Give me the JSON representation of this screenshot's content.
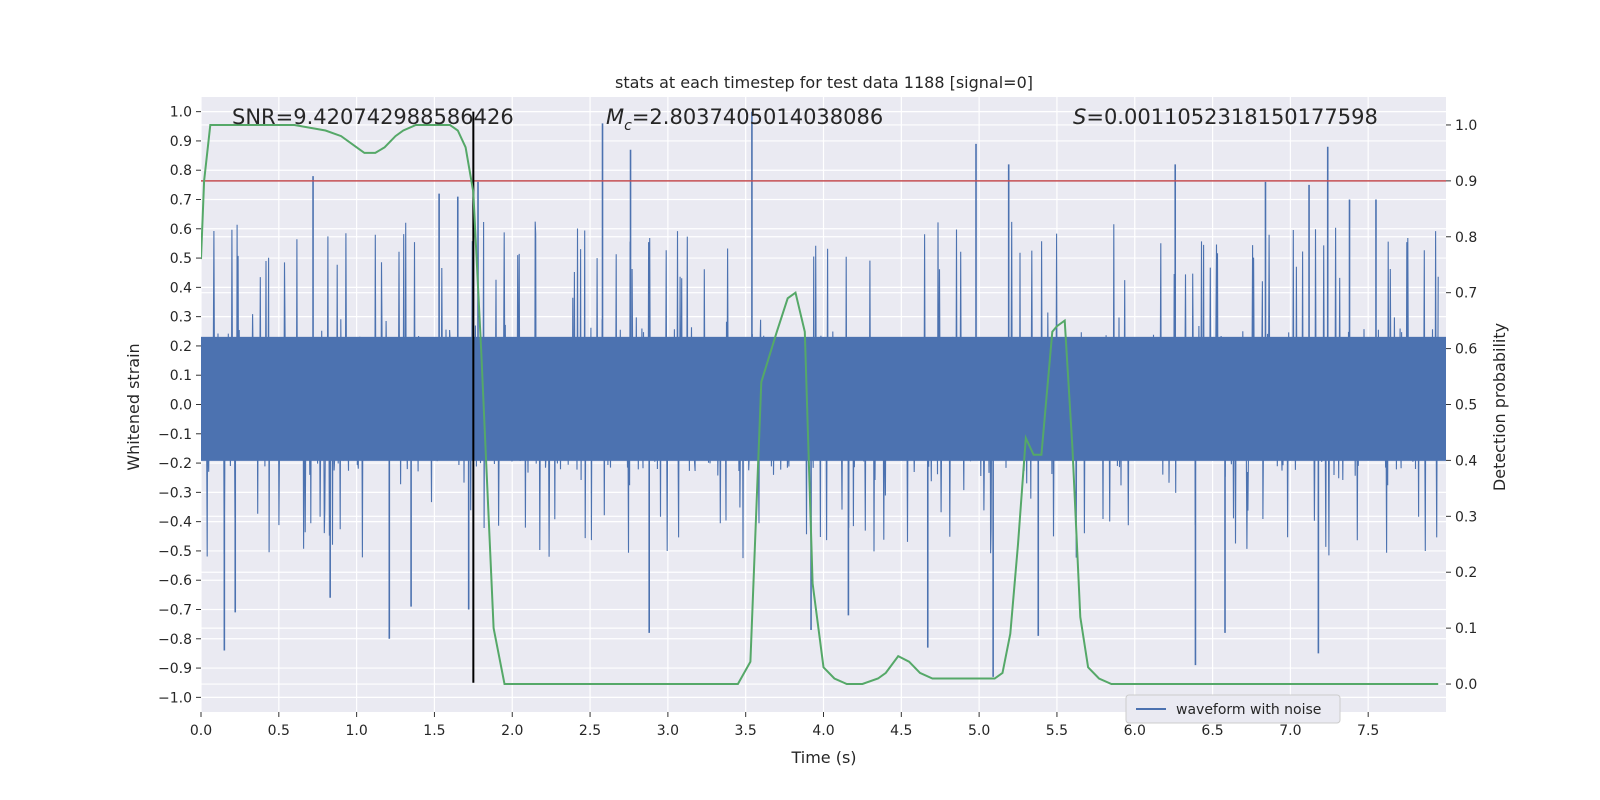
{
  "chart_data": {
    "type": "line",
    "title": "stats at each timestep for test data 1188 [signal=0]",
    "xlabel": "Time (s)",
    "ylabel_left": "Whitened strain",
    "ylabel_right": "Detection probability",
    "xlim": [
      0.0,
      8.0
    ],
    "ylim_left": [
      -1.05,
      1.05
    ],
    "ylim_right": [
      -0.05,
      1.05
    ],
    "xticks": [
      "0.0",
      "0.5",
      "1.0",
      "1.5",
      "2.0",
      "2.5",
      "3.0",
      "3.5",
      "4.0",
      "4.5",
      "5.0",
      "5.5",
      "6.0",
      "6.5",
      "7.0",
      "7.5"
    ],
    "yticks_left": [
      "1.0",
      "0.9",
      "0.8",
      "0.7",
      "0.6",
      "0.5",
      "0.4",
      "0.3",
      "0.2",
      "0.1",
      "0.0",
      "−0.1",
      "−0.2",
      "−0.3",
      "−0.4",
      "−0.5",
      "−0.6",
      "−0.7",
      "−0.8",
      "−0.9",
      "−1.0"
    ],
    "yticks_right": [
      "1.0",
      "0.9",
      "0.8",
      "0.7",
      "0.6",
      "0.5",
      "0.4",
      "0.3",
      "0.2",
      "0.1",
      "0.0"
    ],
    "grid": true,
    "legend": {
      "position": "lower-right",
      "entries": [
        "waveform with noise"
      ]
    },
    "annotations": {
      "snr": "SNR=9.420742988586426",
      "mc_symbol": "M",
      "mc_sub": "c",
      "mc_value": "=2.8037405014038086",
      "s_symbol": "S",
      "s_value": "=0.0011052318150177598"
    },
    "threshold_line": {
      "axis": "right",
      "y": 0.9,
      "color": "#c44e52"
    },
    "event_line": {
      "x": 1.75,
      "color": "#000000"
    },
    "colors": {
      "waveform": "#4c72b0",
      "probability": "#55a868",
      "background": "#eaeaf2",
      "grid": "#ffffff"
    },
    "series": [
      {
        "name": "waveform with noise",
        "axis": "left",
        "kind": "noise",
        "band": [
          -0.35,
          0.42
        ],
        "spikes": [
          [
            0.15,
            -0.84
          ],
          [
            0.22,
            -0.71
          ],
          [
            0.72,
            0.78
          ],
          [
            0.83,
            -0.66
          ],
          [
            1.21,
            -0.8
          ],
          [
            1.35,
            -0.69
          ],
          [
            1.53,
            0.72
          ],
          [
            1.65,
            0.71
          ],
          [
            1.72,
            -0.7
          ],
          [
            1.78,
            0.76
          ],
          [
            2.58,
            0.96
          ],
          [
            2.76,
            0.87
          ],
          [
            2.88,
            -0.78
          ],
          [
            3.54,
            1.0
          ],
          [
            3.92,
            -0.77
          ],
          [
            4.16,
            -0.72
          ],
          [
            4.67,
            -0.83
          ],
          [
            4.98,
            0.89
          ],
          [
            5.09,
            -0.93
          ],
          [
            5.19,
            0.82
          ],
          [
            5.38,
            -0.79
          ],
          [
            6.26,
            0.82
          ],
          [
            6.39,
            -0.89
          ],
          [
            6.58,
            -0.78
          ],
          [
            6.84,
            0.76
          ],
          [
            7.12,
            0.75
          ],
          [
            7.18,
            -0.85
          ],
          [
            7.24,
            0.88
          ],
          [
            7.38,
            0.7
          ],
          [
            7.55,
            0.7
          ]
        ]
      },
      {
        "name": "",
        "axis": "right",
        "x": [
          0.0,
          0.02,
          0.06,
          0.12,
          0.2,
          0.4,
          0.6,
          0.8,
          0.9,
          1.0,
          1.05,
          1.12,
          1.18,
          1.25,
          1.3,
          1.38,
          1.5,
          1.6,
          1.65,
          1.7,
          1.75,
          1.8,
          1.88,
          1.95,
          2.1,
          2.5,
          2.7,
          2.9,
          3.2,
          3.45,
          3.53,
          3.6,
          3.7,
          3.77,
          3.82,
          3.88,
          3.93,
          4.0,
          4.07,
          4.15,
          4.25,
          4.35,
          4.4,
          4.48,
          4.55,
          4.62,
          4.7,
          4.85,
          4.95,
          5.05,
          5.1,
          5.15,
          5.2,
          5.25,
          5.3,
          5.35,
          5.4,
          5.47,
          5.5,
          5.55,
          5.6,
          5.65,
          5.7,
          5.77,
          5.85,
          6.0,
          6.15,
          6.3,
          6.6,
          7.0,
          7.4,
          7.95
        ],
        "values": [
          0.76,
          0.9,
          1.0,
          1.0,
          1.0,
          1.0,
          1.0,
          0.99,
          0.98,
          0.96,
          0.95,
          0.95,
          0.96,
          0.98,
          0.99,
          1.0,
          1.0,
          1.0,
          0.99,
          0.96,
          0.88,
          0.6,
          0.1,
          0.0,
          0.0,
          0.0,
          0.0,
          0.0,
          0.0,
          0.0,
          0.04,
          0.54,
          0.63,
          0.69,
          0.7,
          0.63,
          0.18,
          0.03,
          0.01,
          0.0,
          0.0,
          0.01,
          0.02,
          0.05,
          0.04,
          0.02,
          0.01,
          0.01,
          0.01,
          0.01,
          0.01,
          0.02,
          0.09,
          0.25,
          0.44,
          0.41,
          0.41,
          0.63,
          0.64,
          0.65,
          0.42,
          0.12,
          0.03,
          0.01,
          0.0,
          0.0,
          0.0,
          0.0,
          0.0,
          0.0,
          0.0,
          0.0
        ]
      }
    ]
  }
}
